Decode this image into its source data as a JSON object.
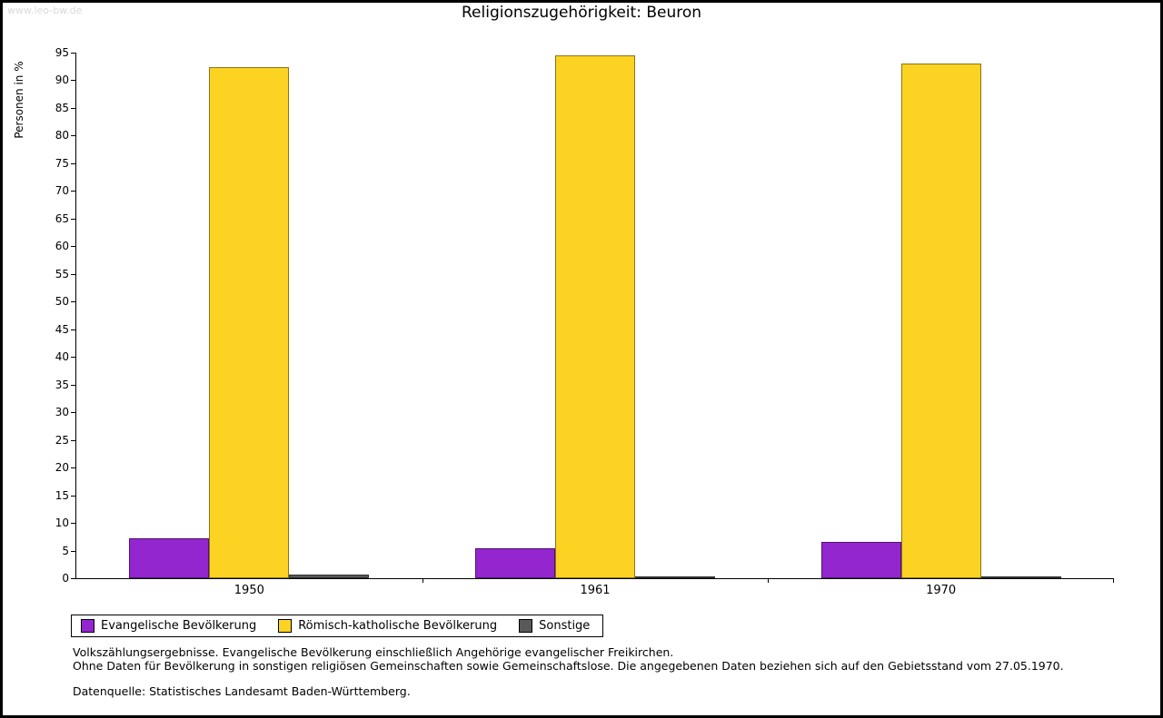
{
  "watermark": "www.leo-bw.de",
  "chart_data": {
    "type": "bar",
    "title": "Religionszugehörigkeit: Beuron",
    "xlabel": "",
    "ylabel": "Personen in %",
    "ylim": [
      0,
      95
    ],
    "ytick_step": 5,
    "grid": false,
    "legend_position": "bottom-left",
    "categories": [
      "1950",
      "1961",
      "1970"
    ],
    "series": [
      {
        "name": "Evangelische Bevölkerung",
        "color": "#9326cf",
        "values": [
          7.2,
          5.4,
          6.6
        ]
      },
      {
        "name": "Römisch-katholische Bevölkerung",
        "color": "#fdd323",
        "values": [
          92.3,
          94.5,
          93.0
        ]
      },
      {
        "name": "Sonstige",
        "color": "#595959",
        "values": [
          0.6,
          0.15,
          0.15
        ]
      }
    ]
  },
  "footnotes": {
    "line1": "Volkszählungsergebnisse. Evangelische Bevölkerung einschließlich Angehörige evangelischer Freikirchen.",
    "line2": "Ohne Daten für Bevölkerung in sonstigen religiösen Gemeinschaften sowie Gemeinschaftslose. Die angegebenen Daten beziehen sich auf den Gebietsstand vom 27.05.1970.",
    "source": "Datenquelle: Statistisches Landesamt Baden-Württemberg."
  }
}
